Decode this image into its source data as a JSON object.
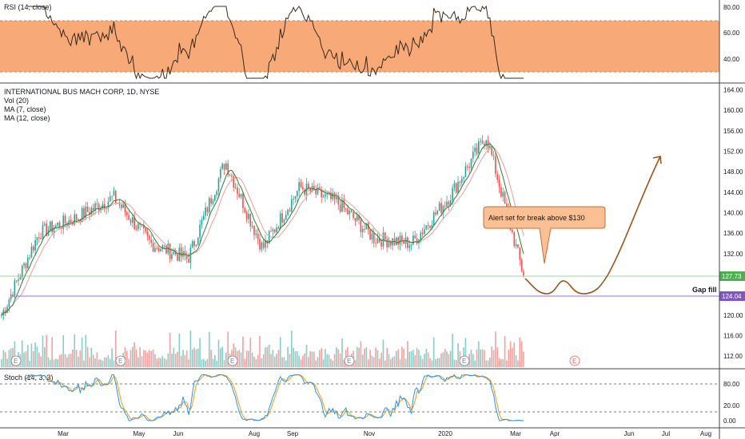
{
  "colors": {
    "up": "#26a69a",
    "down": "#ef5350",
    "ma7": "#2e7d32",
    "ma12": "#ef9a9a",
    "rsi_band": "#f7a978",
    "rsi_line": "#3b2a1a",
    "alert_box": "#fbbf94",
    "alert_border": "#c0723a",
    "path": "#a0521a",
    "price_badge": "#4caf50",
    "gap_badge": "#7e57c2",
    "stoch_k": "#2196f3",
    "stoch_d": "#ff9800",
    "gap_line": "#9575cd",
    "price_line": "#81c784"
  },
  "rsi": {
    "label": "RSI (14, close)",
    "ticks": [
      "80.00",
      "60.00",
      "40.00"
    ]
  },
  "main": {
    "title": "INTERNATIONAL BUS MACH CORP, 1D, NYSE",
    "vol_label": "Vol (20)",
    "ma7_label": "MA (7, close)",
    "ma12_label": "MA (12, close)",
    "price_ticks": [
      "164.00",
      "160.00",
      "156.00",
      "152.00",
      "148.00",
      "144.00",
      "140.00",
      "136.00",
      "132.00",
      "124.00",
      "120.00",
      "116.00",
      "112.00"
    ],
    "last_price": "127.73",
    "gap_price": "124.04",
    "gap_label": "Gap fill",
    "alert_text": "Alert set for break above $130",
    "earnings_marker": "E"
  },
  "stoch": {
    "label": "Stoch (14, 3, 3)",
    "ticks": [
      "80.00",
      "20.00",
      "0.00"
    ]
  },
  "x_axis": [
    "Mar",
    "May",
    "Jun",
    "Aug",
    "Sep",
    "Nov",
    "2020",
    "Mar",
    "Apr",
    "Jun",
    "Jul",
    "Aug"
  ],
  "chart_data": {
    "type": "candlestick",
    "symbol": "INTERNATIONAL BUS MACH CORP, 1D, NYSE",
    "y_range": [
      110,
      165
    ],
    "close_series": [
      {
        "date": "Jan 2019",
        "value": 120
      },
      {
        "date": "Feb 2019",
        "value": 136
      },
      {
        "date": "Mar 2019",
        "value": 139
      },
      {
        "date": "Apr 2019",
        "value": 143
      },
      {
        "date": "May 2019",
        "value": 134
      },
      {
        "date": "Jun 2019",
        "value": 131
      },
      {
        "date": "Jul 2019",
        "value": 150
      },
      {
        "date": "Aug 2019",
        "value": 133
      },
      {
        "date": "Sep 2019",
        "value": 145
      },
      {
        "date": "Oct 2019",
        "value": 142
      },
      {
        "date": "Nov 2019",
        "value": 135
      },
      {
        "date": "Dec 2019",
        "value": 134
      },
      {
        "date": "Jan 2020",
        "value": 143
      },
      {
        "date": "Feb 2020",
        "value": 155
      },
      {
        "date": "Mar 2020",
        "value": 127.73
      }
    ],
    "annotations": {
      "last_price": 127.73,
      "gap_fill_level": 124.04,
      "alert_level": 130
    }
  }
}
